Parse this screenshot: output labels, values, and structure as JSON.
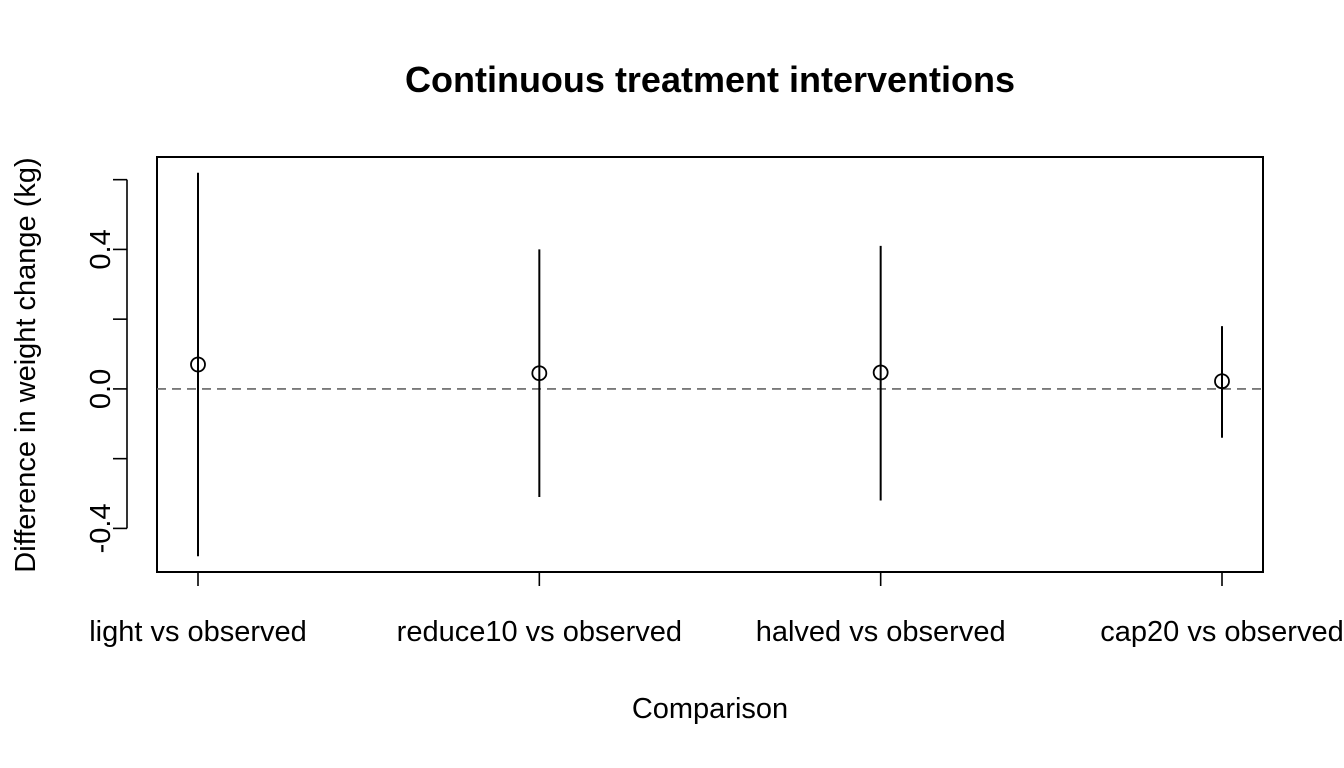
{
  "chart_data": {
    "type": "scatter",
    "title": "Continuous treatment interventions",
    "xlabel": "Comparison",
    "ylabel": "Difference in weight change (kg)",
    "categories": [
      "light vs observed",
      "reduce10 vs observed",
      "halved vs observed",
      "cap20 vs observed"
    ],
    "series": [
      {
        "estimate": [
          0.07,
          0.045,
          0.047,
          0.022
        ],
        "lower": [
          -0.48,
          -0.31,
          -0.32,
          -0.14
        ],
        "upper": [
          0.62,
          0.4,
          0.41,
          0.18
        ]
      }
    ],
    "ylim": [
      -0.525,
      0.665
    ],
    "yticks": [
      -0.4,
      -0.2,
      0.0,
      0.2,
      0.4,
      0.6
    ],
    "ytick_labels": [
      "-0.4",
      "",
      "0.0",
      "",
      "0.4",
      ""
    ],
    "reference_line": 0.0,
    "grid": false,
    "legend": "none"
  }
}
